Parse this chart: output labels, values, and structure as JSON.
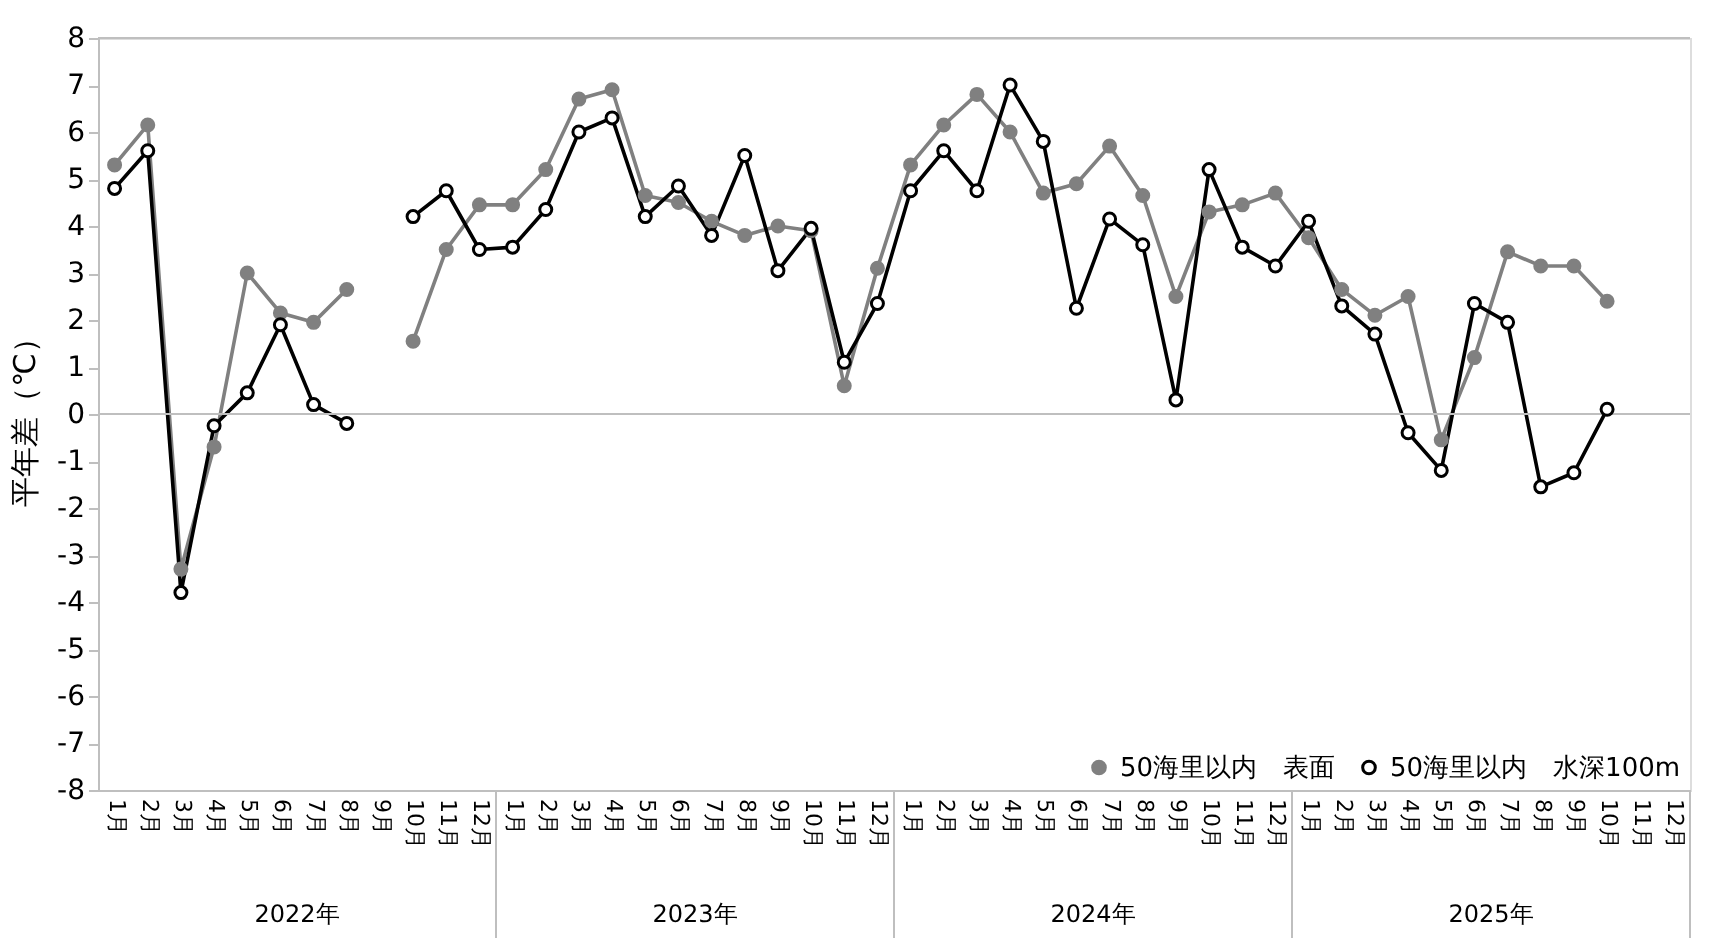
{
  "chart_data": {
    "type": "line",
    "ylabel": "平年差（℃）",
    "categories": [
      "1月",
      "2月",
      "3月",
      "4月",
      "5月",
      "6月",
      "7月",
      "8月",
      "9月",
      "10月",
      "11月",
      "12月",
      "1月",
      "2月",
      "3月",
      "4月",
      "5月",
      "6月",
      "7月",
      "8月",
      "9月",
      "10月",
      "11月",
      "12月",
      "1月",
      "2月",
      "3月",
      "4月",
      "5月",
      "6月",
      "7月",
      "8月",
      "9月",
      "10月",
      "11月",
      "12月",
      "1月",
      "2月",
      "3月",
      "4月",
      "5月",
      "6月",
      "7月",
      "8月",
      "9月",
      "10月",
      "11月",
      "12月"
    ],
    "series": [
      {
        "name": "50海里以内　表面",
        "color": "#808080",
        "marker": "circle",
        "values": [
          5.3,
          6.15,
          -3.3,
          -0.7,
          3.0,
          2.15,
          1.95,
          2.65,
          null,
          1.55,
          3.5,
          4.45,
          4.45,
          5.2,
          6.7,
          6.9,
          4.65,
          4.5,
          4.1,
          3.8,
          4.0,
          3.9,
          0.6,
          3.1,
          5.3,
          6.15,
          6.8,
          6.0,
          4.7,
          4.9,
          5.7,
          4.65,
          2.5,
          4.3,
          4.45,
          4.7,
          3.75,
          2.65,
          2.1,
          2.5,
          -0.55,
          1.2,
          3.45,
          3.15,
          3.15,
          2.4,
          null,
          null
        ]
      },
      {
        "name": "50海里以内　水深100m",
        "color": "#000000",
        "marker": "circle",
        "values": [
          4.8,
          5.6,
          -3.8,
          -0.25,
          0.45,
          1.9,
          0.2,
          -0.2,
          null,
          4.2,
          4.75,
          3.5,
          3.55,
          4.35,
          6.0,
          6.3,
          4.2,
          4.85,
          3.8,
          5.5,
          3.05,
          3.95,
          1.1,
          2.35,
          4.75,
          5.6,
          4.75,
          7.0,
          5.8,
          2.25,
          4.15,
          3.6,
          0.3,
          5.2,
          3.55,
          3.15,
          4.1,
          2.3,
          1.7,
          -0.4,
          -1.2,
          2.35,
          1.95,
          -1.55,
          -1.25,
          0.1,
          null,
          null
        ]
      }
    ],
    "ylim": [
      -8,
      8
    ],
    "yticks": [
      -8,
      -7,
      -6,
      -5,
      -4,
      -3,
      -2,
      -1,
      0,
      1,
      2,
      3,
      4,
      5,
      6,
      7,
      8
    ],
    "ref_lines": [
      {
        "axis": "y",
        "value": 0,
        "color": "#bfbfbf"
      }
    ],
    "annotations": [
      "2022年",
      "2023年",
      "2024年",
      "2025年"
    ],
    "grid": false,
    "legend": "bottom right",
    "line_style": "solid"
  }
}
